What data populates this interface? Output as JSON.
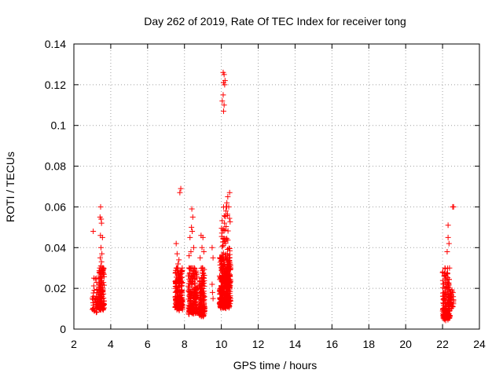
{
  "chart_data": {
    "type": "scatter",
    "title": "Day 262 of 2019, Rate Of TEC Index for receiver tong",
    "xlabel": "GPS time / hours",
    "ylabel": "ROTI / TECUs",
    "xlim": [
      2,
      24
    ],
    "ylim": [
      0,
      0.14
    ],
    "xticks": [
      "2",
      "4",
      "6",
      "8",
      "10",
      "12",
      "14",
      "16",
      "18",
      "20",
      "22",
      "24"
    ],
    "yticks": [
      "0",
      "0.02",
      "0.04",
      "0.06",
      "0.08",
      "0.1",
      "0.12",
      "0.14"
    ],
    "grid": true,
    "marker": "+",
    "color": "#ff0000",
    "clusters": [
      {
        "x_range": [
          3.0,
          3.3
        ],
        "y_range": [
          0.008,
          0.025
        ],
        "n": 40
      },
      {
        "x_range": [
          3.35,
          3.65
        ],
        "y_range": [
          0.009,
          0.03
        ],
        "n": 140
      },
      {
        "x_range": [
          7.5,
          7.9
        ],
        "y_range": [
          0.009,
          0.03
        ],
        "n": 200
      },
      {
        "x_range": [
          8.2,
          8.7
        ],
        "y_range": [
          0.007,
          0.03
        ],
        "n": 200
      },
      {
        "x_range": [
          8.8,
          9.1
        ],
        "y_range": [
          0.006,
          0.03
        ],
        "n": 140
      },
      {
        "x_range": [
          9.9,
          10.5
        ],
        "y_range": [
          0.01,
          0.035
        ],
        "n": 350
      },
      {
        "x_range": [
          10.0,
          10.5
        ],
        "y_range": [
          0.02,
          0.06
        ],
        "n": 120
      },
      {
        "x_range": [
          22.0,
          22.4
        ],
        "y_range": [
          0.004,
          0.03
        ],
        "n": 160
      },
      {
        "x_range": [
          22.35,
          22.6
        ],
        "y_range": [
          0.01,
          0.02
        ],
        "n": 35
      }
    ],
    "points": [
      {
        "x": 3.05,
        "y": 0.048
      },
      {
        "x": 3.45,
        "y": 0.06
      },
      {
        "x": 3.42,
        "y": 0.055
      },
      {
        "x": 3.48,
        "y": 0.054
      },
      {
        "x": 3.5,
        "y": 0.052
      },
      {
        "x": 3.44,
        "y": 0.046
      },
      {
        "x": 3.55,
        "y": 0.045
      },
      {
        "x": 3.47,
        "y": 0.04
      },
      {
        "x": 3.52,
        "y": 0.037
      },
      {
        "x": 3.43,
        "y": 0.035
      },
      {
        "x": 3.5,
        "y": 0.033
      },
      {
        "x": 3.46,
        "y": 0.031
      },
      {
        "x": 7.55,
        "y": 0.042
      },
      {
        "x": 7.6,
        "y": 0.037
      },
      {
        "x": 7.7,
        "y": 0.034
      },
      {
        "x": 7.75,
        "y": 0.067
      },
      {
        "x": 7.8,
        "y": 0.069
      },
      {
        "x": 7.65,
        "y": 0.032
      },
      {
        "x": 8.4,
        "y": 0.059
      },
      {
        "x": 8.45,
        "y": 0.055
      },
      {
        "x": 8.38,
        "y": 0.05
      },
      {
        "x": 8.42,
        "y": 0.048
      },
      {
        "x": 8.3,
        "y": 0.045
      },
      {
        "x": 8.25,
        "y": 0.036
      },
      {
        "x": 8.5,
        "y": 0.04
      },
      {
        "x": 8.35,
        "y": 0.038
      },
      {
        "x": 8.9,
        "y": 0.046
      },
      {
        "x": 9.0,
        "y": 0.045
      },
      {
        "x": 8.95,
        "y": 0.04
      },
      {
        "x": 9.05,
        "y": 0.038
      },
      {
        "x": 8.85,
        "y": 0.035
      },
      {
        "x": 9.5,
        "y": 0.04
      },
      {
        "x": 9.55,
        "y": 0.035
      },
      {
        "x": 9.5,
        "y": 0.022
      },
      {
        "x": 9.52,
        "y": 0.018
      },
      {
        "x": 9.55,
        "y": 0.015
      },
      {
        "x": 10.1,
        "y": 0.126
      },
      {
        "x": 10.15,
        "y": 0.125
      },
      {
        "x": 10.2,
        "y": 0.122
      },
      {
        "x": 10.12,
        "y": 0.121
      },
      {
        "x": 10.18,
        "y": 0.12
      },
      {
        "x": 10.1,
        "y": 0.115
      },
      {
        "x": 10.05,
        "y": 0.112
      },
      {
        "x": 10.15,
        "y": 0.11
      },
      {
        "x": 10.12,
        "y": 0.107
      },
      {
        "x": 10.45,
        "y": 0.067
      },
      {
        "x": 10.35,
        "y": 0.065
      },
      {
        "x": 10.3,
        "y": 0.062
      },
      {
        "x": 10.4,
        "y": 0.06
      },
      {
        "x": 10.25,
        "y": 0.058
      },
      {
        "x": 22.3,
        "y": 0.051
      },
      {
        "x": 22.3,
        "y": 0.045
      },
      {
        "x": 22.35,
        "y": 0.042
      },
      {
        "x": 22.25,
        "y": 0.038
      },
      {
        "x": 22.55,
        "y": 0.06
      },
      {
        "x": 22.6,
        "y": 0.06
      }
    ]
  }
}
